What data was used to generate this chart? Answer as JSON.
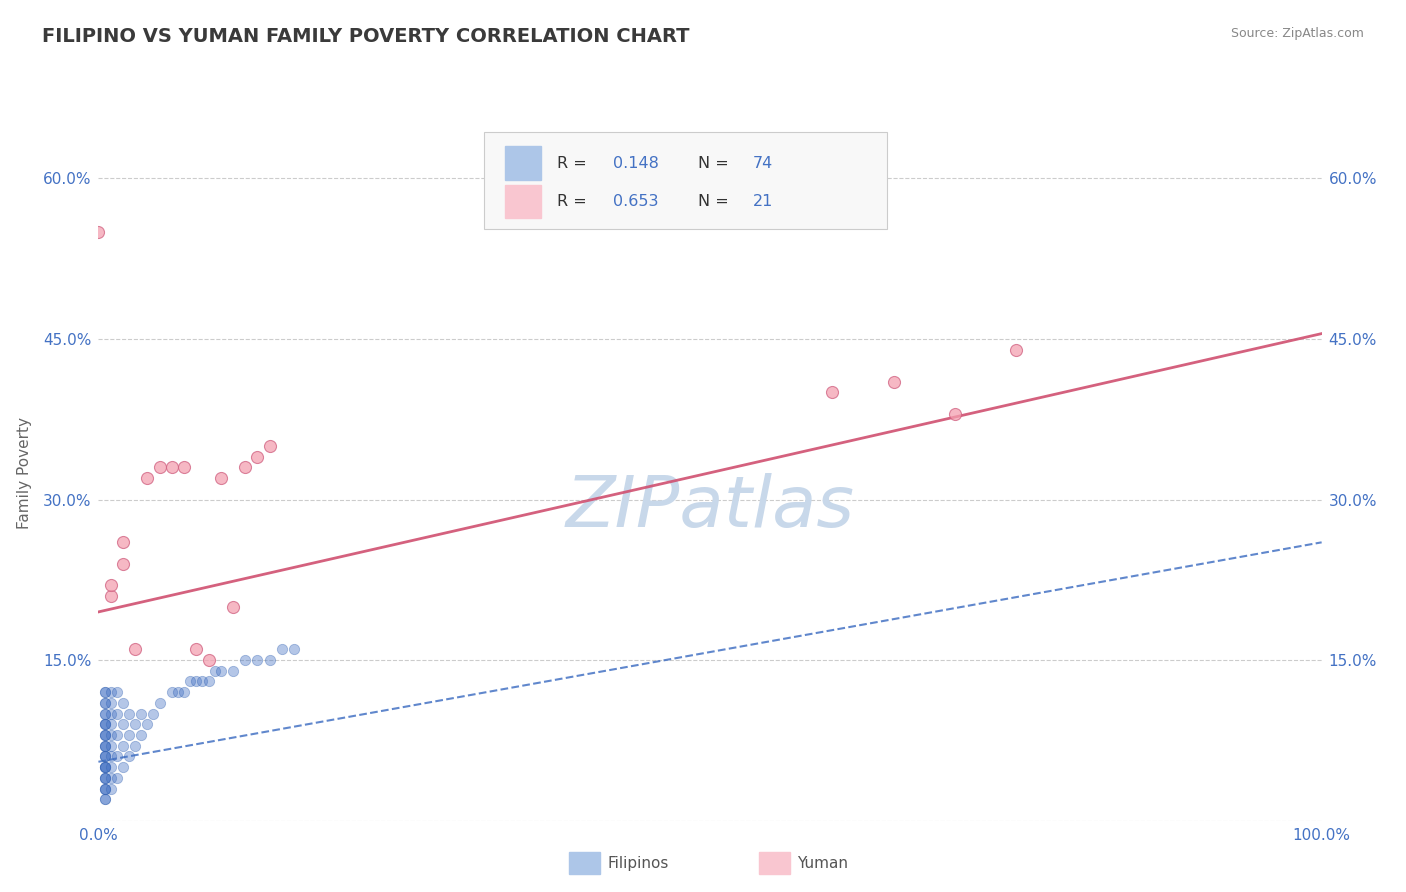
{
  "title": "FILIPINO VS YUMAN FAMILY POVERTY CORRELATION CHART",
  "source": "Source: ZipAtlas.com",
  "ylabel": "Family Poverty",
  "xlim": [
    0.0,
    1.0
  ],
  "ylim": [
    0.0,
    0.65
  ],
  "title_color": "#3a3a3a",
  "title_fontsize": 14,
  "background_color": "#ffffff",
  "grid_color": "#cccccc",
  "axis_tick_color": "#4472c4",
  "legend_color": "#4472c4",
  "filipino_color": "#4472c4",
  "filipino_edge": "#3060b0",
  "yuman_color": "#f4a0b0",
  "yuman_edge": "#d06080",
  "trend_filipino_color": "#4472c4",
  "trend_yuman_color": "#d05070",
  "watermark_color": "#c8d8ea",
  "watermark_text": "ZIPatlas",
  "legend_box_color1": "#adc6e8",
  "legend_box_color2": "#f9c6d0",
  "y_ticks": [
    0.0,
    0.15,
    0.3,
    0.45,
    0.6
  ],
  "yuman_scatter_x": [
    0.01,
    0.01,
    0.02,
    0.02,
    0.03,
    0.04,
    0.05,
    0.06,
    0.07,
    0.08,
    0.09,
    0.1,
    0.11,
    0.12,
    0.13,
    0.14,
    0.6,
    0.65,
    0.7,
    0.75,
    0.0
  ],
  "yuman_scatter_y": [
    0.21,
    0.22,
    0.24,
    0.26,
    0.16,
    0.32,
    0.33,
    0.33,
    0.33,
    0.16,
    0.15,
    0.32,
    0.2,
    0.33,
    0.34,
    0.35,
    0.4,
    0.41,
    0.38,
    0.44,
    0.55
  ],
  "filipino_scatter_x": [
    0.005,
    0.005,
    0.005,
    0.005,
    0.005,
    0.005,
    0.005,
    0.005,
    0.005,
    0.005,
    0.005,
    0.005,
    0.005,
    0.005,
    0.005,
    0.005,
    0.005,
    0.005,
    0.005,
    0.005,
    0.005,
    0.005,
    0.005,
    0.005,
    0.005,
    0.005,
    0.005,
    0.005,
    0.005,
    0.005,
    0.01,
    0.01,
    0.01,
    0.01,
    0.01,
    0.01,
    0.01,
    0.01,
    0.01,
    0.01,
    0.015,
    0.015,
    0.015,
    0.015,
    0.015,
    0.02,
    0.02,
    0.02,
    0.02,
    0.025,
    0.025,
    0.025,
    0.03,
    0.03,
    0.035,
    0.035,
    0.04,
    0.045,
    0.05,
    0.06,
    0.065,
    0.07,
    0.075,
    0.08,
    0.085,
    0.09,
    0.095,
    0.1,
    0.11,
    0.12,
    0.13,
    0.14,
    0.15,
    0.16
  ],
  "filipino_scatter_y": [
    0.02,
    0.02,
    0.03,
    0.03,
    0.03,
    0.04,
    0.04,
    0.04,
    0.05,
    0.05,
    0.05,
    0.05,
    0.06,
    0.06,
    0.06,
    0.07,
    0.07,
    0.07,
    0.08,
    0.08,
    0.08,
    0.09,
    0.09,
    0.09,
    0.1,
    0.1,
    0.11,
    0.11,
    0.12,
    0.12,
    0.03,
    0.04,
    0.05,
    0.06,
    0.07,
    0.08,
    0.09,
    0.1,
    0.11,
    0.12,
    0.04,
    0.06,
    0.08,
    0.1,
    0.12,
    0.05,
    0.07,
    0.09,
    0.11,
    0.06,
    0.08,
    0.1,
    0.07,
    0.09,
    0.08,
    0.1,
    0.09,
    0.1,
    0.11,
    0.12,
    0.12,
    0.12,
    0.13,
    0.13,
    0.13,
    0.13,
    0.14,
    0.14,
    0.14,
    0.15,
    0.15,
    0.15,
    0.16,
    0.16
  ],
  "trend_yuman_x0": 0.0,
  "trend_yuman_y0": 0.195,
  "trend_yuman_x1": 1.0,
  "trend_yuman_y1": 0.455,
  "trend_filipino_x0": 0.0,
  "trend_filipino_y0": 0.055,
  "trend_filipino_x1": 1.0,
  "trend_filipino_y1": 0.26
}
